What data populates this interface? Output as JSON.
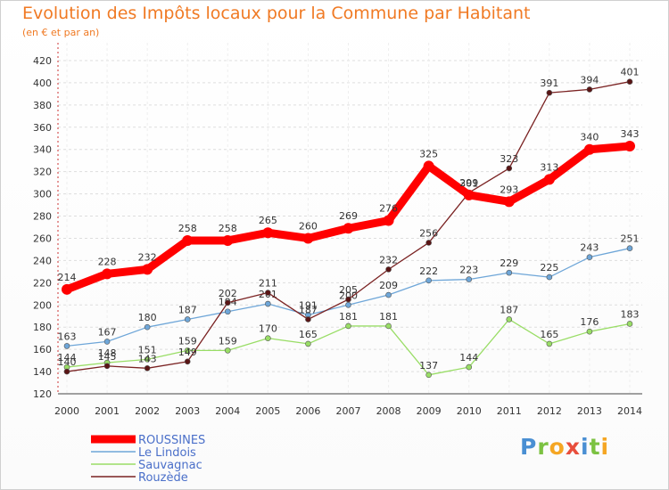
{
  "chart_data": {
    "type": "line",
    "title": "Evolution des Impôts locaux pour la Commune par Habitant",
    "subtitle": "(en € et par an)",
    "x": [
      2000,
      2001,
      2002,
      2003,
      2004,
      2005,
      2006,
      2007,
      2008,
      2009,
      2010,
      2011,
      2012,
      2013,
      2014
    ],
    "ylim": [
      120,
      420
    ],
    "yticks": [
      120,
      140,
      160,
      180,
      200,
      220,
      240,
      260,
      280,
      300,
      320,
      340,
      360,
      380,
      400,
      420
    ],
    "grid": true,
    "legend": "bottom-left",
    "series": [
      {
        "name": "ROUSSINES",
        "color": "#ff0000",
        "values": [
          214,
          228,
          232,
          258,
          258,
          265,
          260,
          269,
          276,
          325,
          299,
          293,
          313,
          340,
          343
        ]
      },
      {
        "name": "Le Lindois",
        "color": "#6ea6d8",
        "values": [
          163,
          167,
          180,
          187,
          194,
          201,
          191,
          200,
          209,
          222,
          223,
          229,
          225,
          243,
          251
        ]
      },
      {
        "name": "Sauvagnac",
        "color": "#99dd66",
        "values": [
          144,
          148,
          151,
          159,
          159,
          170,
          165,
          181,
          181,
          137,
          144,
          187,
          165,
          176,
          183
        ]
      },
      {
        "name": "Rouzède",
        "color": "#7a2222",
        "values": [
          140,
          145,
          143,
          149,
          202,
          211,
          187,
          205,
          232,
          256,
          301,
          323,
          391,
          394,
          401
        ]
      }
    ]
  },
  "brand": {
    "letters": [
      "P",
      "r",
      "o",
      "x",
      "i",
      "t",
      "i"
    ]
  }
}
